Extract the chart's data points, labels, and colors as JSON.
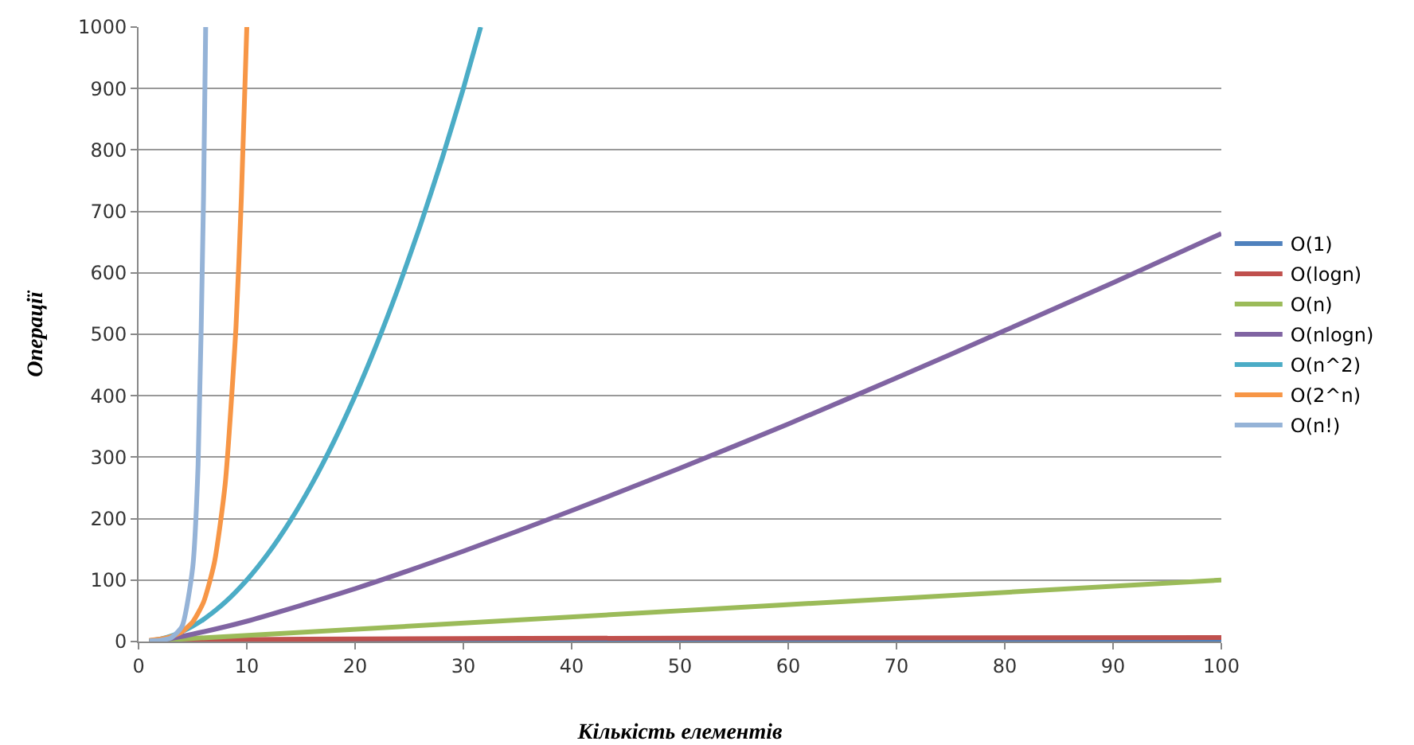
{
  "chart_data": {
    "type": "line",
    "xlabel": "Кількість елементів",
    "ylabel": "Операції",
    "xlim": [
      0,
      100
    ],
    "xticks": [
      0,
      10,
      20,
      30,
      40,
      50,
      60,
      70,
      80,
      90,
      100
    ],
    "ylim": [
      0,
      1000
    ],
    "yticks": [
      0,
      100,
      200,
      300,
      400,
      500,
      600,
      700,
      800,
      900,
      1000
    ],
    "grid": "y",
    "legend": "right",
    "marker": "none",
    "line_style": "solid",
    "series": [
      {
        "name": "O(1)",
        "color": "#4f81bd",
        "x": [
          1,
          100
        ],
        "values": [
          1,
          1
        ]
      },
      {
        "name": "O(logn)",
        "color": "#c0504d",
        "x": [
          1,
          2,
          5,
          10,
          20,
          50,
          100
        ],
        "values": [
          0,
          1,
          2.3,
          3.3,
          4.3,
          5.6,
          6.6
        ]
      },
      {
        "name": "O(n)",
        "color": "#9bbb59",
        "x": [
          1,
          100
        ],
        "values": [
          1,
          100
        ]
      },
      {
        "name": "O(nlogn)",
        "color": "#8064a2",
        "x": [
          1,
          2,
          5,
          10,
          20,
          30,
          40,
          50,
          60,
          70,
          80,
          90,
          100
        ],
        "values": [
          0,
          2,
          12,
          33,
          86,
          147,
          213,
          282,
          354,
          429,
          506,
          584,
          664
        ]
      },
      {
        "name": "O(n^2)",
        "color": "#4bacc6",
        "x": [
          1,
          2,
          3,
          4,
          5,
          6,
          8,
          10,
          12,
          14,
          16,
          18,
          20,
          22,
          24,
          26,
          28,
          30,
          31.6
        ],
        "values": [
          1,
          4,
          9,
          16,
          25,
          36,
          64,
          100,
          144,
          196,
          256,
          324,
          400,
          484,
          576,
          676,
          784,
          900,
          1000
        ]
      },
      {
        "name": "O(2^n)",
        "color": "#f79646",
        "x": [
          1,
          2,
          3,
          4,
          5,
          6,
          7,
          8,
          9,
          9.5,
          10
        ],
        "values": [
          2,
          4,
          8,
          16,
          32,
          64,
          128,
          256,
          512,
          724,
          1000
        ]
      },
      {
        "name": "O(n!)",
        "color": "#95b3d7",
        "x": [
          1,
          2,
          3,
          4,
          5,
          5.5,
          6,
          6.2
        ],
        "values": [
          1,
          2,
          6,
          24,
          120,
          287,
          720,
          1000
        ]
      }
    ]
  }
}
